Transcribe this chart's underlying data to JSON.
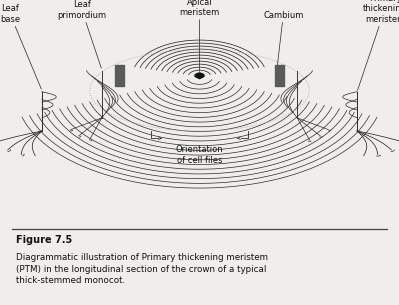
{
  "bg_color": "#f0eeea",
  "line_color": "#2a2a2a",
  "dark_color": "#111111",
  "gray_color": "#666666",
  "labels": {
    "leaf_base": "Leaf\nbase",
    "leaf_primordium": "Leaf\nprimordium",
    "apical_meristem": "Apical\nmeristem",
    "cambium": "Cambium",
    "primary_thickening": "Primary\nthickening\nmeristem",
    "orientation": "Orientation\nof cell files"
  },
  "figure_label": "Figure 7.5",
  "caption_line1": "Diagrammatic illustration of Primary thickening meristem",
  "caption_line2": "(PTM) in the longitudinal section of the crown of a typical",
  "caption_line3": "thick-stemmed monocot."
}
